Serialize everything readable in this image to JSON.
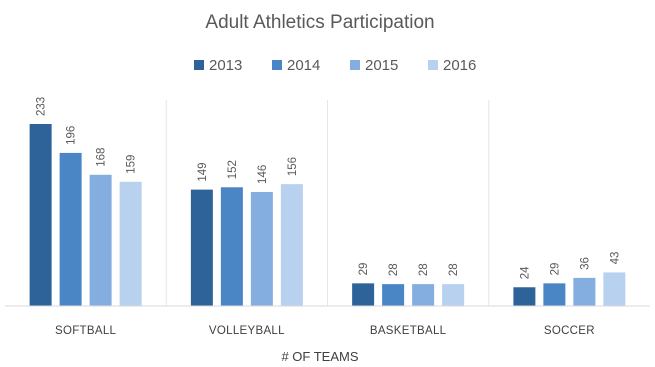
{
  "chart_data": {
    "type": "bar",
    "title": "Adult Athletics Participation",
    "xlabel": "# OF TEAMS",
    "ylabel": "",
    "categories": [
      "SOFTBALL",
      "VOLLEYBALL",
      "BASKETBALL",
      "SOCCER"
    ],
    "series": [
      {
        "name": "2013",
        "color": "#2e6399",
        "values": [
          233,
          149,
          29,
          24
        ]
      },
      {
        "name": "2014",
        "color": "#4a86c5",
        "values": [
          196,
          152,
          28,
          29
        ]
      },
      {
        "name": "2015",
        "color": "#84aee0",
        "values": [
          168,
          146,
          28,
          36
        ]
      },
      {
        "name": "2016",
        "color": "#b8d1ef",
        "values": [
          159,
          156,
          28,
          43
        ]
      }
    ],
    "ylim": [
      0,
      240
    ],
    "legend_position": "top",
    "grid": false,
    "data_labels": true
  }
}
